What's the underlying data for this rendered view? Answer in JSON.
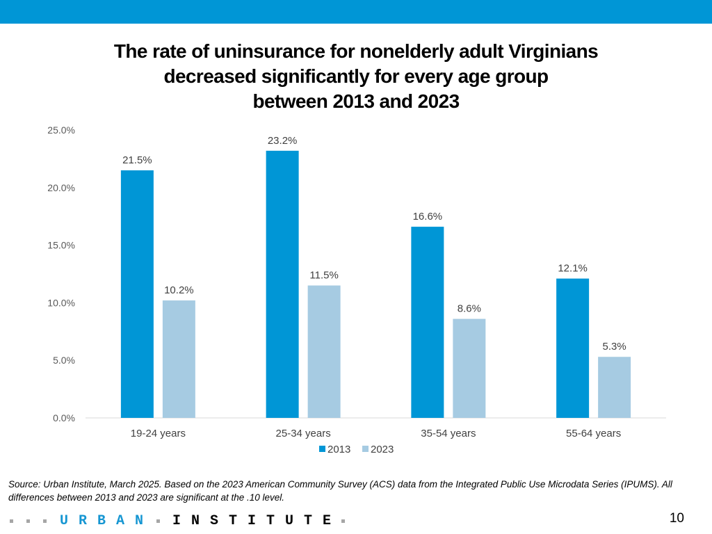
{
  "title_lines": [
    "The rate of uninsurance for nonelderly adult Virginians",
    "decreased significantly for every age group",
    "between 2013 and 2023"
  ],
  "colors": {
    "top_bar": "#0096d6",
    "series_2013": "#0096d6",
    "series_2023": "#a6cbe2",
    "axis": "#d9d9d9"
  },
  "chart_data": {
    "type": "bar",
    "title": "The rate of uninsurance for nonelderly adult Virginians decreased significantly for every age group between 2013 and 2023",
    "categories": [
      "19-24 years",
      "25-34 years",
      "35-54 years",
      "55-64 years"
    ],
    "series": [
      {
        "name": "2013",
        "values": [
          21.5,
          23.2,
          16.6,
          12.1
        ],
        "labels": [
          "21.5%",
          "23.2%",
          "16.6%",
          "12.1%"
        ]
      },
      {
        "name": "2023",
        "values": [
          10.2,
          11.5,
          8.6,
          5.3
        ],
        "labels": [
          "10.2%",
          "11.5%",
          "8.6%",
          "5.3%"
        ]
      }
    ],
    "y_ticks": [
      0,
      5,
      10,
      15,
      20,
      25
    ],
    "y_tick_labels": [
      "0.0%",
      "5.0%",
      "10.0%",
      "15.0%",
      "20.0%",
      "25.0%"
    ],
    "ylim": [
      0,
      25
    ],
    "xlabel": "",
    "ylabel": "",
    "grid": false,
    "legend_position": "bottom"
  },
  "source_note": "Source: Urban Institute, March 2025. Based on the 2023 American Community Survey (ACS) data from the Integrated Public Use Microdata Series (IPUMS). All differences between 2013 and 2023 are significant at the .10 level.",
  "footer": {
    "logo_word_1": "URBAN",
    "logo_word_2": "INSTITUTE",
    "page_number": "10"
  }
}
